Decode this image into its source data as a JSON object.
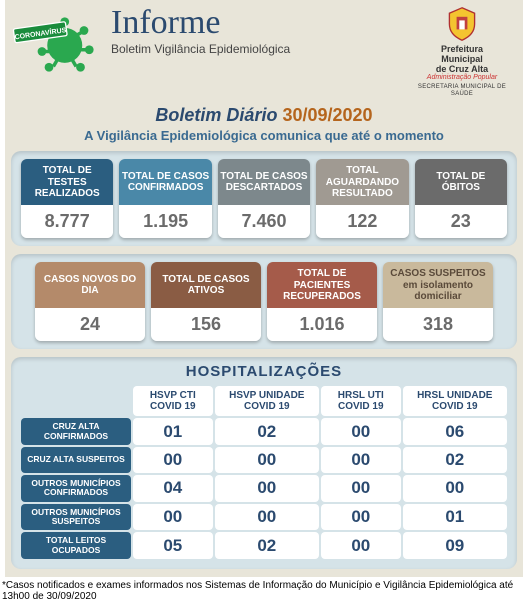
{
  "header": {
    "title": "Informe",
    "subtitle": "Boletim Vigilância Epidemiológica",
    "banner_text": "CORONAVÍRUS",
    "crest_line1": "Prefeitura",
    "crest_line2": "Municipal",
    "crest_line3": "de Cruz Alta",
    "crest_line4": "Administração Popular",
    "crest_line5": "SECRETARIA MUNICIPAL DE SAÚDE"
  },
  "boletim": {
    "label": "Boletim Diário",
    "date": "30/09/2020",
    "comm": "A Vigilância Epidemiológica comunica que até o momento"
  },
  "cards_row1": [
    {
      "label": "TOTAL DE TESTES REALIZADOS",
      "value": "8.777",
      "color": "#2b5e80"
    },
    {
      "label": "TOTAL DE CASOS CONFIRMADOS",
      "value": "1.195",
      "color": "#4a88a8"
    },
    {
      "label": "TOTAL DE CASOS DESCARTADOS",
      "value": "7.460",
      "color": "#7d888c"
    },
    {
      "label": "TOTAL AGUARDANDO RESULTADO",
      "value": "122",
      "color": "#a09a92"
    },
    {
      "label": "TOTAL DE ÓBITOS",
      "value": "23",
      "color": "#6b6b6b"
    }
  ],
  "cards_row2": [
    {
      "label": "CASOS NOVOS DO DIA",
      "value": "24",
      "color": "#b48a6a"
    },
    {
      "label": "TOTAL DE CASOS ATIVOS",
      "value": "156",
      "color": "#8a5c44"
    },
    {
      "label": "TOTAL DE PACIENTES RECUPERADOS",
      "value": "1.016",
      "color": "#a55b4a"
    },
    {
      "label": "CASOS SUSPEITOS em isolamento domiciliar",
      "value": "318",
      "color": "#c9b99c",
      "text": "#5a4a3a"
    }
  ],
  "hosp": {
    "title": "HOSPITALIZAÇÕES",
    "columns": [
      "HSVP CTI COVID 19",
      "HSVP UNIDADE COVID 19",
      "HRSL UTI COVID 19",
      "HRSL UNIDADE COVID 19"
    ],
    "rows": [
      {
        "label": "CRUZ ALTA CONFIRMADOS",
        "cells": [
          "01",
          "02",
          "00",
          "06"
        ]
      },
      {
        "label": "CRUZ ALTA SUSPEITOS",
        "cells": [
          "00",
          "00",
          "00",
          "02"
        ]
      },
      {
        "label": "OUTROS MUNICÍPIOS CONFIRMADOS",
        "cells": [
          "04",
          "00",
          "00",
          "00"
        ]
      },
      {
        "label": "OUTROS MUNICÍPIOS SUSPEITOS",
        "cells": [
          "00",
          "00",
          "00",
          "01"
        ]
      },
      {
        "label": "TOTAL LEITOS OCUPADOS",
        "cells": [
          "05",
          "02",
          "00",
          "09"
        ]
      }
    ]
  },
  "footnote": "*Casos notificados e exames informados nos Sistemas de Informação do Município e Vigilância Epidemiológica até 13h00 de 30/09/2020"
}
